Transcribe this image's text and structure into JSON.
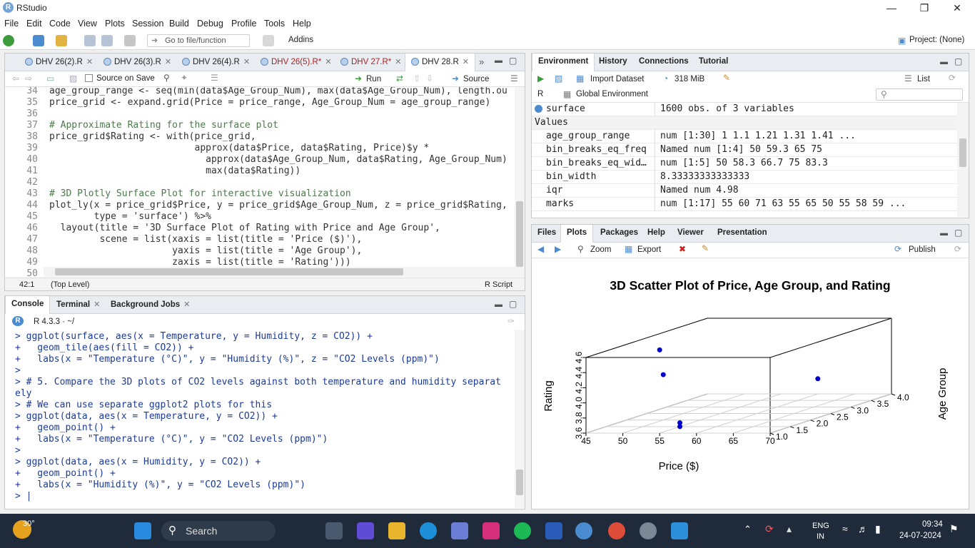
{
  "window": {
    "app_title": "RStudio"
  },
  "menu": [
    "File",
    "Edit",
    "Code",
    "View",
    "Plots",
    "Session",
    "Build",
    "Debug",
    "Profile",
    "Tools",
    "Help"
  ],
  "toolbar": {
    "goto_placeholder": "Go to file/function",
    "addins": "Addins",
    "project": "Project: (None)"
  },
  "editor": {
    "tabs": [
      {
        "label": "DHV 26(2).R",
        "modified": false
      },
      {
        "label": "DHV 26(3).R",
        "modified": false
      },
      {
        "label": "DHV 26(4).R",
        "modified": false
      },
      {
        "label": "DHV 26(5).R*",
        "modified": true
      },
      {
        "label": "DHV 27.R*",
        "modified": true
      },
      {
        "label": "DHV 28.R",
        "modified": false
      }
    ],
    "source_on_save": "Source on Save",
    "run": "Run",
    "source": "Source",
    "lines": [
      {
        "n": "34",
        "t": "age_group_range <- seq(min(data$Age_Group_Num), max(data$Age_Group_Num), length.ou"
      },
      {
        "n": "35",
        "t": "price_grid <- expand.grid(Price = price_range, Age_Group_Num = age_group_range)"
      },
      {
        "n": "36",
        "t": ""
      },
      {
        "n": "37",
        "t": "# Approximate Rating for the surface plot"
      },
      {
        "n": "38",
        "t": "price_grid$Rating <- with(price_grid,"
      },
      {
        "n": "39",
        "t": "                          approx(data$Price, data$Rating, Price)$y *"
      },
      {
        "n": "40",
        "t": "                            approx(data$Age_Group_Num, data$Rating, Age_Group_Num)"
      },
      {
        "n": "41",
        "t": "                            max(data$Rating))"
      },
      {
        "n": "42",
        "t": ""
      },
      {
        "n": "43",
        "t": "# 3D Plotly Surface Plot for interactive visualization"
      },
      {
        "n": "44",
        "t": "plot_ly(x = price_grid$Price, y = price_grid$Age_Group_Num, z = price_grid$Rating,"
      },
      {
        "n": "45",
        "t": "        type = 'surface') %>%"
      },
      {
        "n": "46",
        "t": "  layout(title = '3D Surface Plot of Rating with Price and Age Group',"
      },
      {
        "n": "47",
        "t": "         scene = list(xaxis = list(title = 'Price ($)'),"
      },
      {
        "n": "48",
        "t": "                      yaxis = list(title = 'Age Group'),"
      },
      {
        "n": "49",
        "t": "                      zaxis = list(title = 'Rating')))"
      },
      {
        "n": "50",
        "t": ""
      }
    ],
    "status_pos": "42:1",
    "status_scope": "(Top Level)",
    "status_type": "R Script"
  },
  "console": {
    "tabs": [
      "Console",
      "Terminal",
      "Background Jobs"
    ],
    "version": "R 4.3.3 · ~/",
    "lines": [
      "> ggplot(surface, aes(x = Temperature, y = Humidity, z = CO2)) +",
      "+   geom_tile(aes(fill = CO2)) +",
      "+   labs(x = \"Temperature (°C)\", y = \"Humidity (%)\", z = \"CO2 Levels (ppm)\")",
      ">",
      "> # 5. Compare the 3D plots of CO2 levels against both temperature and humidity separat",
      "ely",
      "> # We can use separate ggplot2 plots for this",
      "> ggplot(data, aes(x = Temperature, y = CO2)) +",
      "+   geom_point() +",
      "+   labs(x = \"Temperature (°C)\", y = \"CO2 Levels (ppm)\")",
      ">",
      "> ggplot(data, aes(x = Humidity, y = CO2)) +",
      "+   geom_point() +",
      "+   labs(x = \"Humidity (%)\", y = \"CO2 Levels (ppm)\")",
      "> |"
    ]
  },
  "environment": {
    "tabs": [
      "Environment",
      "History",
      "Connections",
      "Tutorial"
    ],
    "import_dataset": "Import Dataset",
    "memory": "318 MiB",
    "list_label": "List",
    "lang": "R",
    "scope": "Global Environment",
    "data_row": {
      "name": "surface",
      "value": "1600 obs. of 3 variables"
    },
    "values_header": "Values",
    "values": [
      {
        "name": "age_group_range",
        "value": "num [1:30] 1 1.1 1.21 1.31 1.41 ..."
      },
      {
        "name": "bin_breaks_eq_freq",
        "value": "Named num [1:4] 50 59.3 65 75"
      },
      {
        "name": "bin_breaks_eq_wid…",
        "value": "num [1:5] 50 58.3 66.7 75 83.3"
      },
      {
        "name": "bin_width",
        "value": "8.33333333333333"
      },
      {
        "name": "iqr",
        "value": "Named num 4.98"
      },
      {
        "name": "marks",
        "value": "num [1:17] 55 60 71 63 55 65 50 55 58 59 ..."
      }
    ]
  },
  "files": {
    "tabs": [
      "Files",
      "Plots",
      "Packages",
      "Help",
      "Viewer",
      "Presentation"
    ],
    "zoom": "Zoom",
    "export": "Export",
    "publish": "Publish"
  },
  "chart_data": {
    "type": "scatter",
    "title": "3D Scatter Plot of Price, Age Group, and Rating",
    "xlabel": "Price ($)",
    "ylabel": "Age Group",
    "zlabel": "Rating",
    "x_ticks": [
      "45",
      "50",
      "55",
      "60",
      "65",
      "70"
    ],
    "y_ticks": [
      "1.0",
      "1.5",
      "2.0",
      "2.5",
      "3.0",
      "3.5",
      "4.0"
    ],
    "z_ticks": [
      "3.6",
      "3.8",
      "4.0",
      "4.2",
      "4.4",
      "4.6"
    ],
    "xlim": [
      45,
      70
    ],
    "ylim": [
      1.0,
      4.0
    ],
    "zlim": [
      3.6,
      4.6
    ],
    "points": [
      {
        "x": 55,
        "y": 1.0,
        "z": 4.7
      },
      {
        "x": 50,
        "y": 2.0,
        "z": 4.2
      },
      {
        "x": 55,
        "y": 1.5,
        "z": 3.6
      },
      {
        "x": 55,
        "y": 1.5,
        "z": 3.65
      },
      {
        "x": 60,
        "y": 4.0,
        "z": 3.8
      }
    ],
    "point_color": "#0000cc"
  },
  "taskbar": {
    "weather": "30°",
    "search": "Search",
    "lang1": "ENG",
    "lang2": "IN",
    "time": "09:34",
    "date": "24-07-2024"
  }
}
